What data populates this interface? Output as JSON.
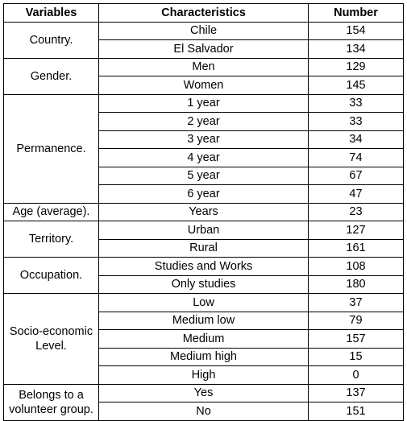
{
  "table": {
    "headers": [
      "Variables",
      "Characteristics",
      "Number"
    ],
    "groups": [
      {
        "variable": "Country.",
        "rows": [
          {
            "characteristic": "Chile",
            "number": "154"
          },
          {
            "characteristic": "El Salvador",
            "number": "134"
          }
        ]
      },
      {
        "variable": "Gender.",
        "rows": [
          {
            "characteristic": "Men",
            "number": "129"
          },
          {
            "characteristic": "Women",
            "number": "145"
          }
        ]
      },
      {
        "variable": "Permanence.",
        "rows": [
          {
            "characteristic": "1 year",
            "number": "33"
          },
          {
            "characteristic": "2 year",
            "number": "33"
          },
          {
            "characteristic": "3 year",
            "number": "34"
          },
          {
            "characteristic": "4 year",
            "number": "74"
          },
          {
            "characteristic": "5 year",
            "number": "67"
          },
          {
            "characteristic": "6 year",
            "number": "47"
          }
        ]
      },
      {
        "variable": "Age (average).",
        "rows": [
          {
            "characteristic": "Years",
            "number": "23"
          }
        ]
      },
      {
        "variable": "Territory.",
        "rows": [
          {
            "characteristic": "Urban",
            "number": "127"
          },
          {
            "characteristic": "Rural",
            "number": "161"
          }
        ]
      },
      {
        "variable": "Occupation.",
        "rows": [
          {
            "characteristic": "Studies and Works",
            "number": "108"
          },
          {
            "characteristic": "Only studies",
            "number": "180"
          }
        ]
      },
      {
        "variable": "Socio-economic Level.",
        "rows": [
          {
            "characteristic": "Low",
            "number": "37"
          },
          {
            "characteristic": "Medium low",
            "number": "79"
          },
          {
            "characteristic": "Medium",
            "number": "157"
          },
          {
            "characteristic": "Medium high",
            "number": "15"
          },
          {
            "characteristic": "High",
            "number": "0"
          }
        ]
      },
      {
        "variable": "Belongs to a volunteer group.",
        "rows": [
          {
            "characteristic": "Yes",
            "number": "137"
          },
          {
            "characteristic": "No",
            "number": "151"
          }
        ]
      }
    ]
  }
}
